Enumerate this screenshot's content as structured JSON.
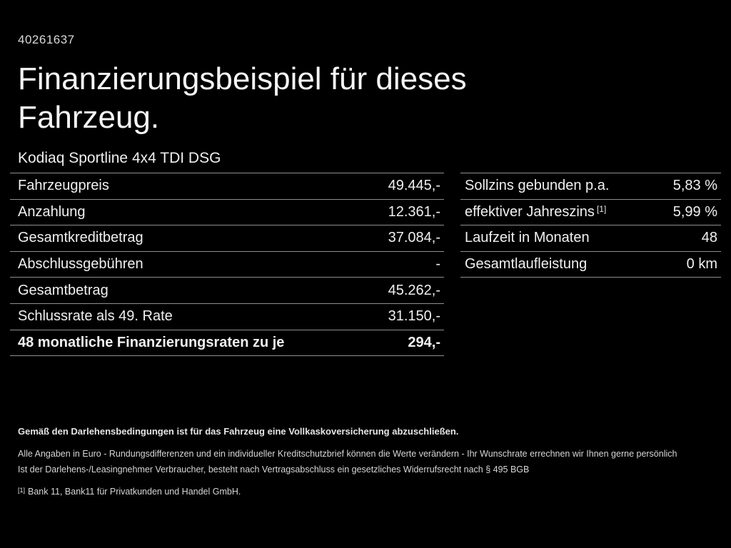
{
  "page": {
    "ref_number": "40261637",
    "title": "Finanzierungsbeispiel für dieses Fahrzeug.",
    "subtitle": "Kodiaq Sportline 4x4 TDI DSG"
  },
  "finance_table": {
    "rows": [
      {
        "label": "Fahrzeugpreis",
        "value": "49.445,-"
      },
      {
        "label": "Anzahlung",
        "value": "12.361,-"
      },
      {
        "label": "Gesamtkreditbetrag",
        "value": "37.084,-"
      },
      {
        "label": "Abschlussgebühren",
        "value": "-"
      },
      {
        "label": "Gesamtbetrag",
        "value": "45.262,-"
      },
      {
        "label": "Schlussrate als 49. Rate",
        "value": "31.150,-"
      },
      {
        "label": "48 monatliche Finanzierungsraten zu je",
        "value": "294,-"
      }
    ]
  },
  "conditions_table": {
    "rows": [
      {
        "label": "Sollzins gebunden p.a.",
        "sup": "",
        "value": "5,83 %"
      },
      {
        "label": "effektiver Jahreszins",
        "sup": "[1]",
        "value": "5,99 %"
      },
      {
        "label": "Laufzeit in Monaten",
        "sup": "",
        "value": "48"
      },
      {
        "label": "Gesamtlaufleistung",
        "sup": "",
        "value": "0 km"
      }
    ]
  },
  "footer": {
    "line1": "Gemäß den Darlehensbedingungen ist für das Fahrzeug eine Vollkaskoversicherung abzuschließen.",
    "line2": "Alle Angaben in Euro - Rundungsdifferenzen und ein individueller Kreditschutzbrief können die Werte verändern - Ihr Wunschrate errechnen wir Ihnen gerne persönlich",
    "line3": "Ist der Darlehens-/Leasingnehmer Verbraucher, besteht nach Vertragsabschluss ein gesetzliches Widerrufsrecht nach § 495 BGB",
    "footnote_marker": "[1]",
    "footnote_text": "Bank 11, Bank11 für Privatkunden und Handel GmbH."
  },
  "colors": {
    "background": "#000000",
    "text": "#f2f2f2",
    "muted_text": "#d6d6d6",
    "divider": "#8f8f8f"
  }
}
